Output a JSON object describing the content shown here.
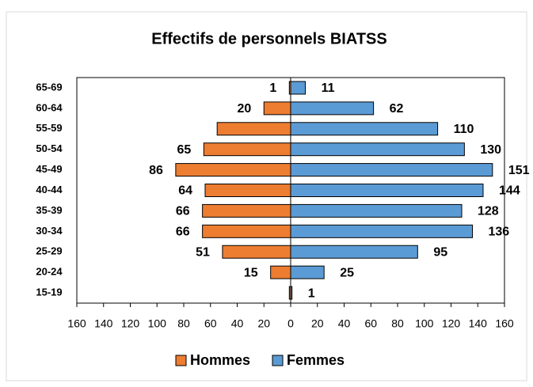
{
  "chart_data": {
    "type": "pyramid",
    "title": "Effectifs de personnels BIATSS",
    "categories": [
      "65-69",
      "60-64",
      "55-59",
      "50-54",
      "45-49",
      "40-44",
      "35-39",
      "30-34",
      "25-29",
      "20-24",
      "15-19"
    ],
    "series": [
      {
        "name": "Hommes",
        "color": "#ed7d31",
        "values": [
          -1,
          -20,
          -55,
          -65,
          -86,
          -64,
          -66,
          -66,
          -51,
          -15,
          -1
        ],
        "value_labels": [
          "1",
          "20",
          null,
          "65",
          "86",
          "64",
          "66",
          "66",
          "51",
          "15",
          null
        ]
      },
      {
        "name": "Femmes",
        "color": "#5b9bd5",
        "values": [
          11,
          62,
          110,
          130,
          151,
          144,
          128,
          136,
          95,
          25,
          1
        ]
      }
    ],
    "xlim": [
      -160,
      160
    ],
    "xticks": [
      {
        "value": -160,
        "label": "160"
      },
      {
        "value": -140,
        "label": "140"
      },
      {
        "value": -120,
        "label": "120"
      },
      {
        "value": -100,
        "label": "100"
      },
      {
        "value": -80,
        "label": "80"
      },
      {
        "value": -60,
        "label": "60"
      },
      {
        "value": -40,
        "label": "40"
      },
      {
        "value": -20,
        "label": "20"
      },
      0,
      20,
      40,
      60,
      80,
      100,
      120,
      140,
      160
    ],
    "legend": "bottom"
  }
}
